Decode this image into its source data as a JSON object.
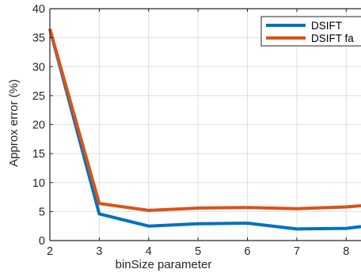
{
  "chart_data": {
    "type": "line",
    "xlabel": "binSize parameter",
    "ylabel": "Approx error (%)",
    "xlim": [
      2,
      8.3
    ],
    "ylim": [
      0,
      40
    ],
    "x_ticks": [
      2,
      3,
      4,
      5,
      6,
      7,
      8
    ],
    "y_ticks": [
      0,
      5,
      10,
      15,
      20,
      25,
      30,
      35,
      40
    ],
    "grid": true,
    "legend_position": "top-right",
    "x": [
      2,
      3,
      4,
      5,
      6,
      7,
      8,
      8.3
    ],
    "series": [
      {
        "name": "DSIFT",
        "color": "#0072BD",
        "values": [
          36.5,
          4.6,
          2.5,
          2.9,
          3.0,
          2.0,
          2.1,
          2.4
        ]
      },
      {
        "name": "DSIFT fa",
        "color": "#D95319",
        "values": [
          36.5,
          6.4,
          5.2,
          5.6,
          5.7,
          5.5,
          5.8,
          6.0
        ]
      }
    ]
  }
}
